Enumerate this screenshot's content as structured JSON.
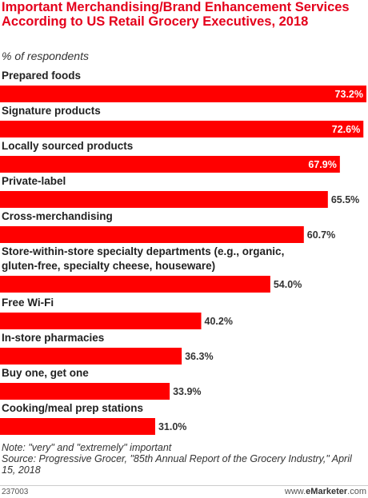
{
  "title": "Important Merchandising/Brand Enhancement Services According to US Retail Grocery Executives, 2018",
  "subtitle": "% of respondents",
  "chart_data": {
    "type": "bar",
    "orientation": "horizontal",
    "bar_color": "#ff0000",
    "label_color_inside": "#ffffff",
    "label_color_outside": "#333333",
    "categories": [
      "Prepared foods",
      "Signature products",
      "Locally sourced products",
      "Private-label",
      "Cross-merchandising",
      "Store-within-store specialty departments (e.g., organic, gluten-free, specialty cheese, houseware)",
      "Free Wi-Fi",
      "In-store pharmacies",
      "Buy one, get one",
      "Cooking/meal prep stations"
    ],
    "values": [
      73.2,
      72.6,
      67.9,
      65.5,
      60.7,
      54.0,
      40.2,
      36.3,
      33.9,
      31.0
    ],
    "value_labels": [
      "73.2%",
      "72.6%",
      "67.9%",
      "65.5%",
      "60.7%",
      "54.0%",
      "40.2%",
      "36.3%",
      "33.9%",
      "31.0%"
    ],
    "xlim": [
      0,
      73.2
    ]
  },
  "footer": {
    "note": "Note: \"very\" and \"extremely\" important",
    "source": "Source: Progressive Grocer, \"85th Annual Report of the Grocery Industry,\" April 15, 2018",
    "chart_id": "237003",
    "brand_prefix": "www.",
    "brand_name": "eMarketer",
    "brand_suffix": ".com"
  }
}
